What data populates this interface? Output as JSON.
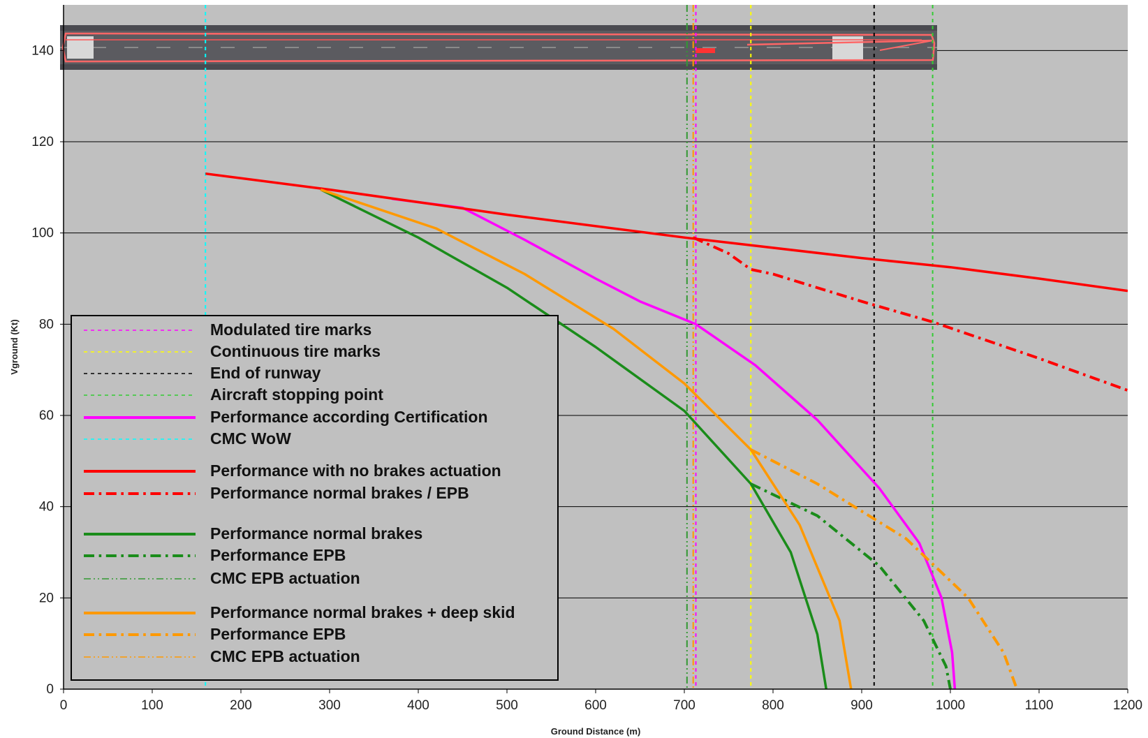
{
  "chart_data": {
    "type": "line",
    "xlabel": "Ground Distance (m)",
    "ylabel": "Vground (Kt)",
    "xlim": [
      0,
      1200
    ],
    "ylim": [
      0,
      150
    ],
    "x_ticks": [
      "0",
      "100",
      "200",
      "300",
      "400",
      "500",
      "600",
      "700",
      "800",
      "900",
      "1000",
      "1100",
      "1200"
    ],
    "y_ticks": [
      "0",
      "20",
      "40",
      "60",
      "80",
      "100",
      "120",
      "140"
    ],
    "grid": "horizontal",
    "background_color": "#c0c0c0",
    "legend_placement": "bottom-left",
    "inset_image": "runway-aerial-photo",
    "vertical_markers": [
      {
        "name": "Modulated tire marks",
        "x": 713,
        "color": "#ff00ff",
        "style": "dashed"
      },
      {
        "name": "Continuous tire marks",
        "x": 775,
        "color": "#ffff00",
        "style": "dashed"
      },
      {
        "name": "End of runway",
        "x": 914,
        "color": "#000000",
        "style": "dashed"
      },
      {
        "name": "Aircraft stopping point",
        "x": 980,
        "color": "#33cc33",
        "style": "dashed"
      },
      {
        "name": "CMC WoW",
        "x": 160,
        "color": "#00ffff",
        "style": "dashed"
      },
      {
        "name": "CMC EPB actuation",
        "x": 703,
        "color": "#339933",
        "style": "dash-dot-dot"
      },
      {
        "name": "CMC EPB actuation",
        "x": 710,
        "color": "#ff9900",
        "style": "dash-dot-dot"
      }
    ],
    "series": [
      {
        "name": "Performance according Certification",
        "color": "#ff00ff",
        "style": "solid",
        "x": [
          370,
          450,
          520,
          600,
          650,
          713,
          780,
          850,
          920,
          965,
          990,
          1002,
          1005
        ],
        "y": [
          107.5,
          105.5,
          98.5,
          90,
          85,
          80,
          71,
          59,
          44,
          32,
          20,
          8,
          0
        ]
      },
      {
        "name": "Performance with no brakes actuation",
        "color": "#ff0000",
        "style": "solid",
        "x": [
          160,
          300,
          500,
          700,
          900,
          1000,
          1100,
          1200
        ],
        "y": [
          113,
          109.5,
          104,
          99,
          94.5,
          92.5,
          90,
          87.3
        ]
      },
      {
        "name": "Performance normal brakes / EPB",
        "color": "#ff0000",
        "style": "dash-dot",
        "x": [
          710,
          750,
          775,
          800,
          900,
          980,
          1100,
          1200
        ],
        "y": [
          99,
          95.5,
          92,
          91,
          85,
          80.5,
          72.5,
          65.5
        ]
      },
      {
        "name": "Performance normal brakes",
        "color": "#1a8c1a",
        "style": "solid",
        "x": [
          290,
          400,
          500,
          600,
          700,
          775,
          820,
          850,
          860
        ],
        "y": [
          109.5,
          99,
          88,
          75,
          61,
          45,
          30,
          12,
          0
        ]
      },
      {
        "name": "Performance EPB",
        "color": "#1a8c1a",
        "style": "dash-dot",
        "x": [
          775,
          850,
          920,
          970,
          995,
          1000
        ],
        "y": [
          45,
          38,
          27,
          15,
          5,
          0
        ]
      },
      {
        "name": "Performance normal brakes + deep skid",
        "color": "#ff9900",
        "style": "solid",
        "x": [
          290,
          420,
          520,
          620,
          700,
          775,
          830,
          875,
          888
        ],
        "y": [
          109.5,
          101,
          91,
          79,
          67,
          52.5,
          36,
          15,
          0
        ]
      },
      {
        "name": "Performance EPB",
        "color": "#ff9900",
        "style": "dash-dot",
        "x": [
          775,
          850,
          950,
          1020,
          1060,
          1075
        ],
        "y": [
          52.5,
          45,
          33,
          20,
          8,
          0
        ]
      }
    ],
    "legend": [
      {
        "label": "Modulated tire marks",
        "color": "#ff00ff",
        "style": "dashed",
        "width": 1.5
      },
      {
        "label": "Continuous tire marks",
        "color": "#ffff00",
        "style": "dashed",
        "width": 1.5
      },
      {
        "label": "End of runway",
        "color": "#000000",
        "style": "dashed",
        "width": 1.5
      },
      {
        "label": "Aircraft stopping point",
        "color": "#33cc33",
        "style": "dashed",
        "width": 1.5
      },
      {
        "label": "Performance according Certification",
        "color": "#ff00ff",
        "style": "solid",
        "width": 4
      },
      {
        "label": "CMC WoW",
        "color": "#00ffff",
        "style": "dashed",
        "width": 1.5
      },
      {
        "label": "Performance with no brakes actuation",
        "color": "#ff0000",
        "style": "solid",
        "width": 4
      },
      {
        "label": "Performance normal brakes / EPB",
        "color": "#ff0000",
        "style": "dash-dot",
        "width": 4
      },
      {
        "label": "Performance normal brakes",
        "color": "#1a8c1a",
        "style": "solid",
        "width": 4
      },
      {
        "label": "Performance EPB",
        "color": "#1a8c1a",
        "style": "dash-dot",
        "width": 4
      },
      {
        "label": "CMC EPB actuation",
        "color": "#339933",
        "style": "dash-dot-dot",
        "width": 1.5
      },
      {
        "label": "Performance normal brakes + deep skid",
        "color": "#ff9900",
        "style": "solid",
        "width": 4
      },
      {
        "label": "Performance EPB",
        "color": "#ff9900",
        "style": "dash-dot",
        "width": 4
      },
      {
        "label": "CMC EPB actuation",
        "color": "#ff9900",
        "style": "dash-dot-dot",
        "width": 1.5
      }
    ]
  }
}
